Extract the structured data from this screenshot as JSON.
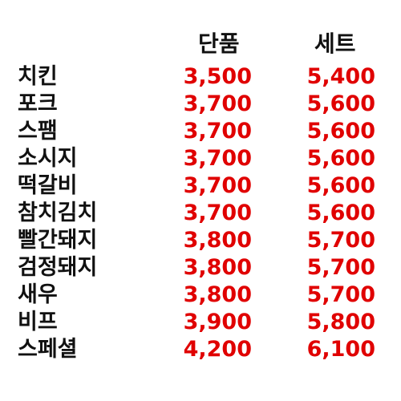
{
  "header": {
    "single_label": "단품",
    "set_label": "세트"
  },
  "colors": {
    "name_text": "#111111",
    "price_text": "#e00000",
    "background": "#ffffff"
  },
  "rows": [
    {
      "name": "치킨",
      "single": "3,500",
      "set": "5,400"
    },
    {
      "name": "포크",
      "single": "3,700",
      "set": "5,600"
    },
    {
      "name": "스팸",
      "single": "3,700",
      "set": "5,600"
    },
    {
      "name": "소시지",
      "single": "3,700",
      "set": "5,600"
    },
    {
      "name": "떡갈비",
      "single": "3,700",
      "set": "5,600"
    },
    {
      "name": "참치김치",
      "single": "3,700",
      "set": "5,600"
    },
    {
      "name": "빨간돼지",
      "single": "3,800",
      "set": "5,700"
    },
    {
      "name": "검정돼지",
      "single": "3,800",
      "set": "5,700"
    },
    {
      "name": "새우",
      "single": "3,800",
      "set": "5,700"
    },
    {
      "name": "비프",
      "single": "3,900",
      "set": "5,800"
    },
    {
      "name": "스페셜",
      "single": "4,200",
      "set": "6,100"
    }
  ]
}
